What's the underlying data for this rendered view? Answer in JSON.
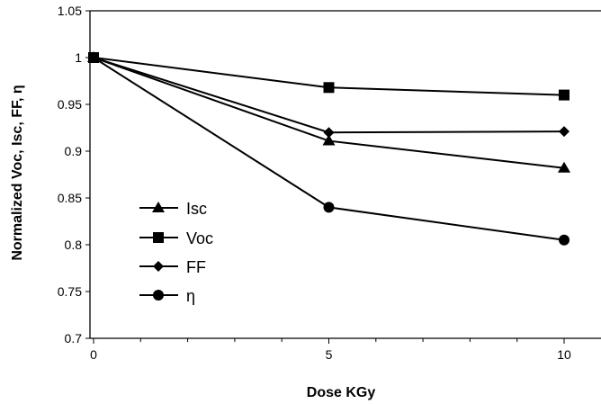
{
  "chart_data": {
    "type": "line",
    "x": [
      0,
      5,
      10
    ],
    "xlabel": "Dose KGy",
    "ylabel": "Normalized Voc, Isc, FF, η",
    "xlim": [
      0,
      10
    ],
    "ylim": [
      0.7,
      1.05
    ],
    "x_ticks": [
      0,
      5,
      10
    ],
    "y_ticks": [
      0.7,
      0.75,
      0.8,
      0.85,
      0.9,
      0.95,
      1.0,
      1.05
    ],
    "x_tick_labels": [
      "0",
      "5",
      "10"
    ],
    "y_tick_labels": [
      "0.7",
      "0.75",
      "0.8",
      "0.85",
      "0.9",
      "0.95",
      "1",
      "1.05"
    ],
    "grid": false,
    "legend_position": "bottom-left",
    "series": [
      {
        "name": "Isc",
        "marker": "triangle",
        "values": [
          1.0,
          0.911,
          0.882
        ]
      },
      {
        "name": "Voc",
        "marker": "square",
        "values": [
          1.0,
          0.968,
          0.96
        ]
      },
      {
        "name": "FF",
        "marker": "diamond",
        "values": [
          1.0,
          0.92,
          0.921
        ]
      },
      {
        "name": "η",
        "marker": "circle",
        "values": [
          1.0,
          0.84,
          0.805
        ]
      }
    ],
    "colors": {
      "line": "#000000",
      "marker": "#000000"
    }
  }
}
